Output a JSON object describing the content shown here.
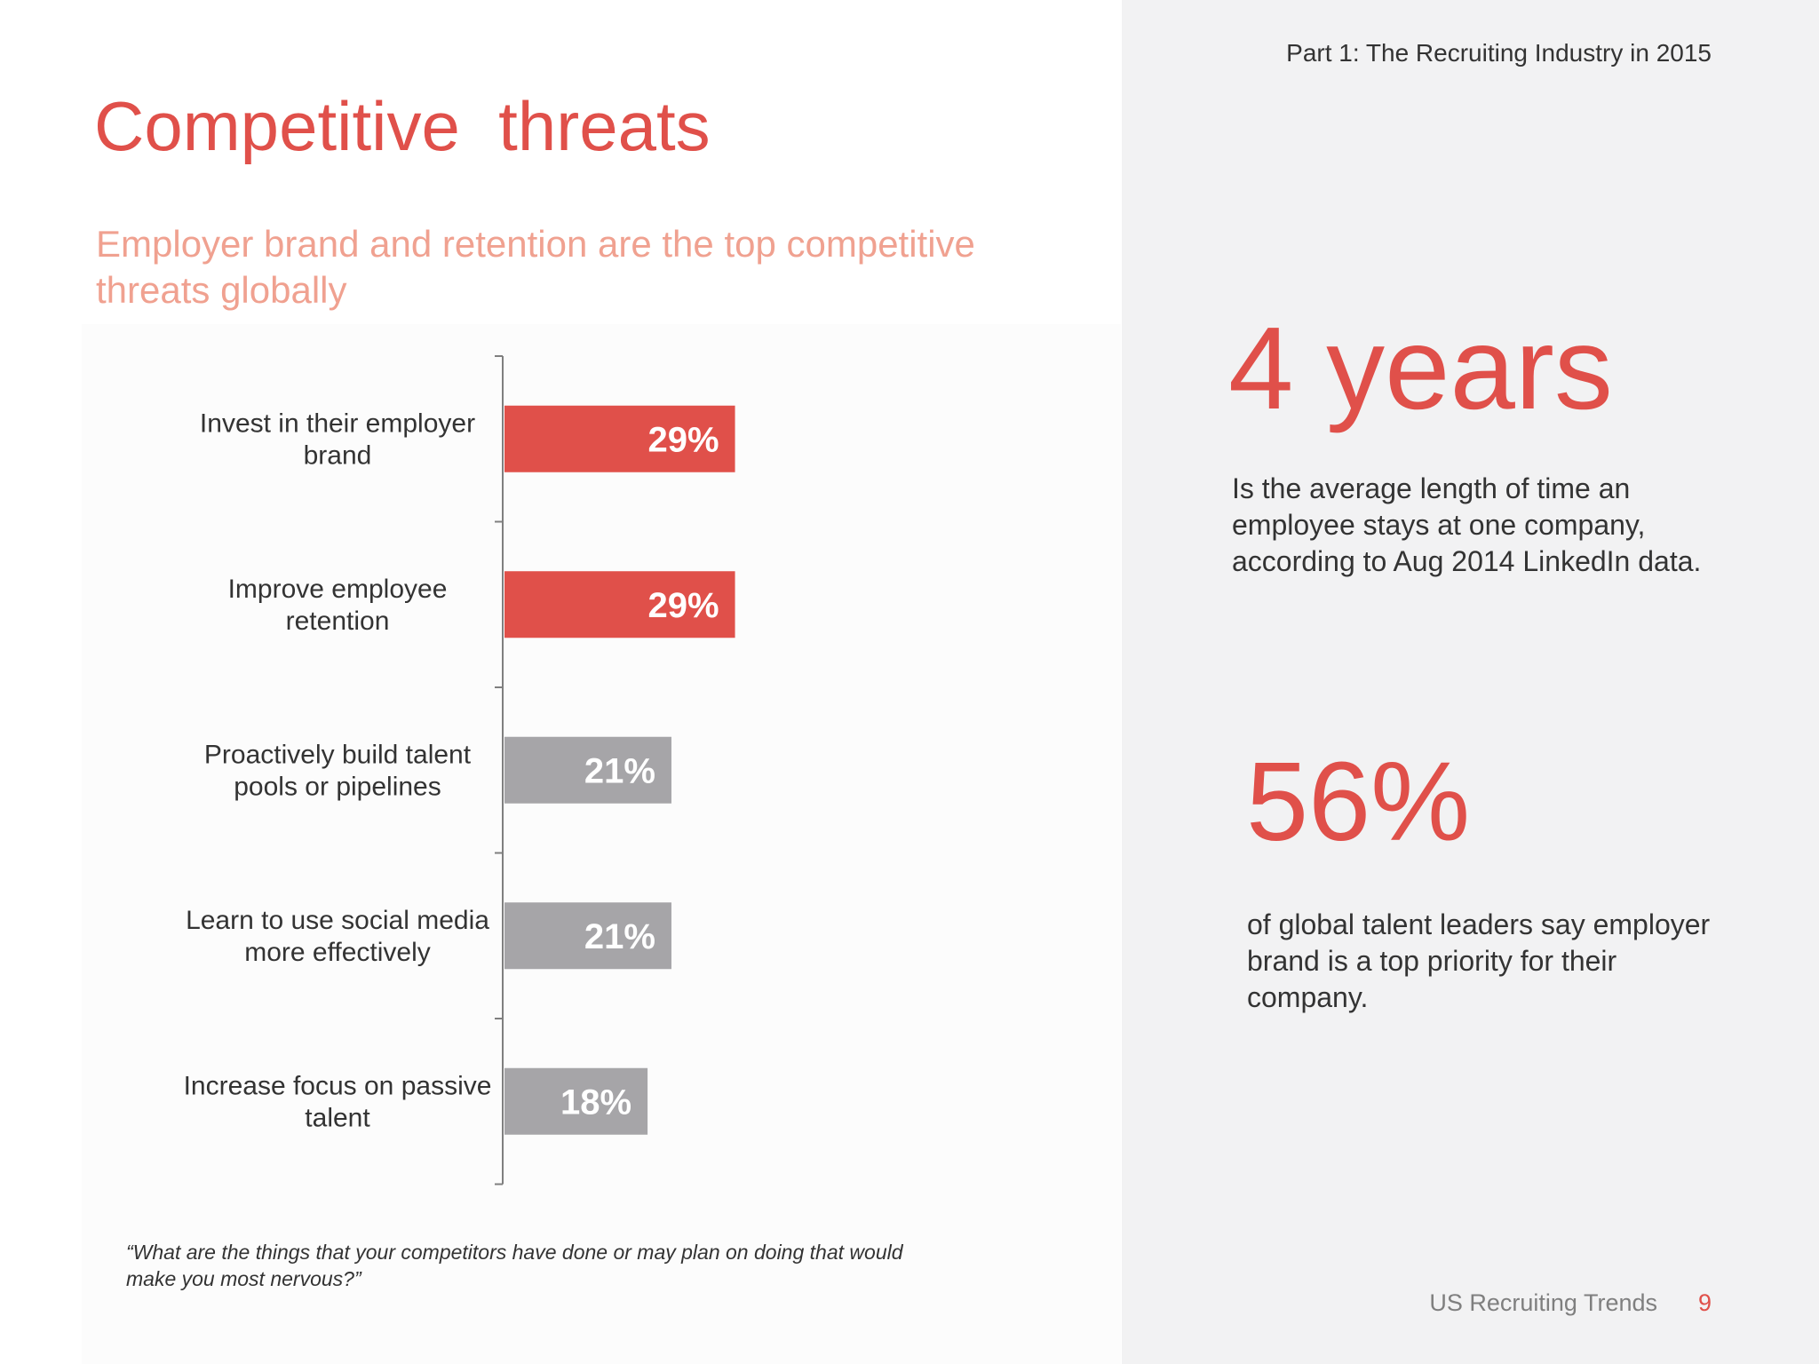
{
  "header": {
    "section": "Part 1: The Recruiting Industry in 2015"
  },
  "title": "Competitive  threats",
  "subtitle": "Employer brand and retention are the top competitive threats globally",
  "chart_data": {
    "type": "bar",
    "orientation": "horizontal",
    "categories": [
      [
        "Invest in their employer",
        "brand"
      ],
      [
        "Improve employee",
        "retention"
      ],
      [
        "Proactively build talent",
        "pools or pipelines"
      ],
      [
        "Learn to use social media",
        "more effectively"
      ],
      [
        "Increase focus on passive",
        "talent"
      ]
    ],
    "values": [
      29,
      29,
      21,
      21,
      18
    ],
    "value_labels": [
      "29%",
      "29%",
      "21%",
      "21%",
      "18%"
    ],
    "bar_colors": [
      "#e0504a",
      "#e0504a",
      "#a6a5a8",
      "#a6a5a8",
      "#a6a5a8"
    ],
    "xlim": [
      0,
      100
    ],
    "grid": false,
    "legend": "none"
  },
  "footnote": "“What are the things that your competitors have done or may plan on doing that would make you most nervous?”",
  "stats": {
    "years": {
      "value": "4 years",
      "description": "Is the average length of time an employee stays at one company, according to Aug 2014 LinkedIn data."
    },
    "percent": {
      "value": "56%",
      "description": "of global talent leaders say employer brand is a top priority for their company."
    }
  },
  "footer": {
    "brand": "US Recruiting Trends",
    "page": "9"
  },
  "colors": {
    "accent": "#e0504a",
    "subtitle": "#f0a190",
    "bar_gray": "#a6a5a8",
    "panel_gray": "#f2f2f3"
  }
}
